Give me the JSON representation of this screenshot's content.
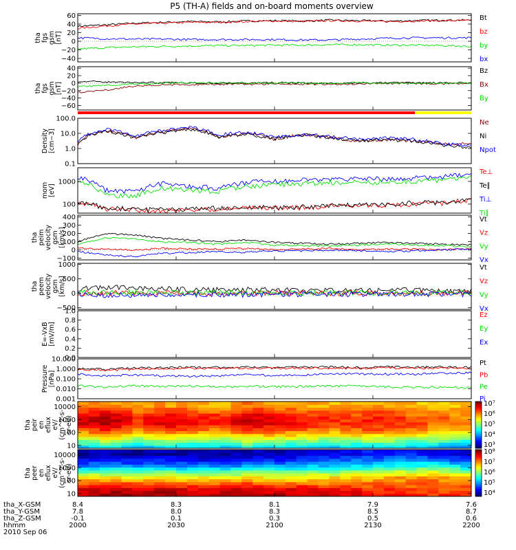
{
  "title": "P5 (TH-A) fields and on-board moments overview",
  "colors": {
    "black": "#000000",
    "red": "#ff0000",
    "green": "#00e000",
    "blue": "#0000ff",
    "darkred": "#8b0000",
    "olive": "#9a7a00",
    "lightgreen": "#60ff30",
    "yellow": "#ffff00",
    "brown": "#8b2500"
  },
  "chart_data": [
    {
      "id": "fgs_gsm",
      "type": "line",
      "ylabel_lines": [
        "tha",
        "fgs",
        "gsm",
        "[nT]"
      ],
      "ytick_labels": [
        "60",
        "40",
        "20",
        "0",
        "−20",
        "−40"
      ],
      "yticks": [
        60,
        40,
        20,
        0,
        -20,
        -40
      ],
      "ylim": [
        -48,
        64
      ],
      "log": false,
      "series": [
        {
          "name": "Bt",
          "color": "#000000",
          "values": [
            35,
            38,
            42,
            44,
            46,
            45,
            47,
            48,
            47,
            49,
            48,
            47,
            48,
            49,
            49
          ]
        },
        {
          "name": "bz",
          "color": "#ff0000",
          "values": [
            30,
            36,
            40,
            42,
            44,
            44,
            46,
            47,
            46,
            48,
            47,
            46,
            47,
            48,
            48
          ]
        },
        {
          "name": "by",
          "color": "#00e000",
          "values": [
            -18,
            -15,
            -13,
            -12,
            -11,
            -10,
            -10,
            -9,
            -9,
            -8,
            -8,
            -9,
            -9,
            -10,
            -12
          ]
        },
        {
          "name": "bx",
          "color": "#0000ff",
          "values": [
            8,
            6,
            5,
            5,
            4,
            4,
            4,
            4,
            3,
            3,
            5,
            7,
            8,
            8,
            8
          ]
        }
      ],
      "legend": [
        "Bt",
        "bz",
        "by",
        "bx"
      ]
    },
    {
      "id": "fgs_gsm_2",
      "type": "line",
      "ylabel_lines": [
        "tha",
        "fgs",
        "gsm",
        "[nT]"
      ],
      "ytick_labels": [
        "40",
        "20",
        "0",
        "−20",
        "−40",
        "−60"
      ],
      "yticks": [
        40,
        20,
        0,
        -20,
        -40,
        -60
      ],
      "ylim": [
        -72,
        44
      ],
      "log": false,
      "series": [
        {
          "name": "Bz",
          "color": "#000000",
          "values": [
            5,
            3,
            2,
            1,
            1,
            0,
            0,
            1,
            0,
            -1,
            0,
            1,
            1,
            0,
            1
          ]
        },
        {
          "name": "Bx",
          "color": "#8b0000",
          "values": [
            -25,
            -18,
            -8,
            -5,
            -4,
            -3,
            -3,
            -2,
            -3,
            -3,
            -2,
            -1,
            -1,
            -2,
            -1
          ]
        },
        {
          "name": "By",
          "color": "#00e000",
          "values": [
            -10,
            -6,
            -2,
            0,
            1,
            1,
            0,
            0,
            0,
            0,
            1,
            0,
            0,
            0,
            0
          ]
        }
      ],
      "legend": [
        "Bz",
        "Bx",
        "By"
      ]
    },
    {
      "id": "density",
      "type": "line",
      "ylabel_lines": [
        "Density",
        "[cm−3]"
      ],
      "ytick_labels": [
        "100.0",
        "10.0",
        "1.0",
        "0.1"
      ],
      "yticks": [
        100,
        10,
        1,
        0.1
      ],
      "ylim": [
        0.1,
        100
      ],
      "log": true,
      "series": [
        {
          "name": "Ne",
          "color": "#8b0000",
          "values": [
            2,
            15,
            5,
            12,
            20,
            6,
            10,
            4,
            8,
            5,
            3,
            4,
            3,
            2,
            2
          ]
        },
        {
          "name": "Ni",
          "color": "#000000",
          "values": [
            2,
            14,
            5,
            11,
            19,
            6,
            9,
            4,
            8,
            5,
            3,
            4,
            3,
            1.5,
            1.2
          ]
        },
        {
          "name": "Npot",
          "color": "#0000ff",
          "values": [
            2.5,
            18,
            6,
            15,
            25,
            8,
            12,
            5,
            9,
            6,
            4,
            5,
            4,
            2,
            1.5
          ]
        }
      ],
      "legend": [
        "Ne",
        "Ni",
        "Npot"
      ]
    },
    {
      "id": "mom_temp",
      "type": "line",
      "ylabel_lines": [
        "mom",
        "[eV]"
      ],
      "ytick_labels": [
        "1000",
        "100"
      ],
      "yticks": [
        1000,
        100
      ],
      "ylim": [
        40,
        4000
      ],
      "log": true,
      "series": [
        {
          "name": "Te⊥",
          "color": "#ff0000",
          "values": [
            120,
            60,
            55,
            50,
            55,
            60,
            70,
            65,
            70,
            80,
            85,
            90,
            100,
            110,
            150
          ]
        },
        {
          "name": "Te∥",
          "color": "#000000",
          "values": [
            130,
            65,
            60,
            55,
            60,
            65,
            75,
            70,
            75,
            85,
            90,
            100,
            110,
            120,
            160
          ]
        },
        {
          "name": "Ti⊥",
          "color": "#0000ff",
          "values": [
            1500,
            400,
            350,
            800,
            600,
            500,
            900,
            1000,
            1100,
            1200,
            1300,
            1300,
            1400,
            1600,
            2000
          ]
        },
        {
          "name": "Ti∥",
          "color": "#00e000",
          "values": [
            1000,
            250,
            220,
            500,
            400,
            350,
            600,
            700,
            800,
            900,
            900,
            950,
            1000,
            1100,
            1500
          ]
        }
      ],
      "legend": [
        "Te⊥",
        "Te∥",
        "Ti⊥",
        "Ti∥"
      ]
    },
    {
      "id": "peim_velocity",
      "type": "line",
      "ylabel_lines": [
        "tha",
        "peim",
        "velocity",
        "gsm",
        "[km/s]"
      ],
      "ytick_labels": [
        "400",
        "300",
        "200",
        "100",
        "0",
        "−100"
      ],
      "yticks": [
        400,
        300,
        200,
        100,
        0,
        -100
      ],
      "ylim": [
        -120,
        420
      ],
      "log": false,
      "series": [
        {
          "name": "Vt",
          "color": "#000000",
          "values": [
            100,
            200,
            180,
            140,
            120,
            100,
            120,
            90,
            80,
            70,
            80,
            90,
            80,
            70,
            60
          ]
        },
        {
          "name": "Vz",
          "color": "#ff0000",
          "values": [
            20,
            10,
            0,
            20,
            10,
            10,
            20,
            0,
            10,
            20,
            0,
            10,
            10,
            0,
            20
          ]
        },
        {
          "name": "Vy",
          "color": "#00e000",
          "values": [
            60,
            150,
            130,
            100,
            90,
            70,
            90,
            60,
            50,
            50,
            60,
            70,
            60,
            50,
            40
          ]
        },
        {
          "name": "Vx",
          "color": "#0000ff",
          "values": [
            -20,
            -60,
            -80,
            -40,
            -30,
            -20,
            -30,
            -10,
            -10,
            0,
            -10,
            -20,
            -10,
            0,
            10
          ]
        }
      ],
      "legend": [
        "Vt",
        "Vz",
        "Vy",
        "Vx"
      ]
    },
    {
      "id": "peem_velocity",
      "type": "line",
      "ylabel_lines": [
        "tha",
        "peem",
        "velocity",
        "gsm",
        "[km/s]"
      ],
      "ytick_labels": [
        "1000",
        "500",
        "0",
        "−500"
      ],
      "yticks": [
        1000,
        500,
        0,
        -500
      ],
      "ylim": [
        -560,
        1040
      ],
      "log": false,
      "series": [
        {
          "name": "Vt",
          "color": "#000000",
          "values": [
            150,
            200,
            180,
            150,
            120,
            110,
            120,
            100,
            90,
            90,
            100,
            110,
            100,
            90,
            100
          ]
        },
        {
          "name": "Vz",
          "color": "#ff0000",
          "values": [
            0,
            20,
            10,
            0,
            10,
            0,
            0,
            10,
            0,
            0,
            10,
            0,
            0,
            10,
            0
          ]
        },
        {
          "name": "Vy",
          "color": "#00e000",
          "values": [
            20,
            30,
            20,
            10,
            20,
            10,
            10,
            20,
            10,
            10,
            20,
            10,
            10,
            20,
            10
          ]
        },
        {
          "name": "Vx",
          "color": "#0000ff",
          "values": [
            -50,
            -80,
            -60,
            -50,
            -40,
            -40,
            -50,
            -40,
            -30,
            -30,
            -40,
            -30,
            -30,
            -40,
            -30
          ]
        }
      ],
      "legend": [
        "Vt",
        "Vz",
        "Vy",
        "Vx"
      ]
    },
    {
      "id": "e_vxb",
      "type": "line",
      "ylabel_lines": [
        "E=-VxB",
        "[mV/m]"
      ],
      "ytick_labels": [
        "1.0",
        "0.8",
        "0.6",
        "0.4",
        "0.2",
        "0.0"
      ],
      "yticks": [
        1,
        0.8,
        0.6,
        0.4,
        0.2,
        0
      ],
      "ylim": [
        0,
        1
      ],
      "log": false,
      "series": [],
      "legend": [
        "Ez",
        "Ey",
        "Ex"
      ]
    },
    {
      "id": "pressure",
      "type": "line",
      "ylabel_lines": [
        "Pressure",
        "[nPa]"
      ],
      "ytick_labels": [
        "10.000",
        "1.000",
        "0.100",
        "0.010",
        "0.001"
      ],
      "yticks": [
        10,
        1,
        0.1,
        0.01,
        0.001
      ],
      "ylim": [
        0.001,
        10
      ],
      "log": true,
      "series": [
        {
          "name": "Pt",
          "color": "#000000",
          "values": [
            1.1,
            0.9,
            1.2,
            1.3,
            1.4,
            1.4,
            1.5,
            1.4,
            1.5,
            1.5,
            1.4,
            1.5,
            1.5,
            1.5,
            1.4
          ]
        },
        {
          "name": "Pb",
          "color": "#ff0000",
          "values": [
            0.9,
            0.7,
            0.9,
            1.0,
            1.1,
            1.1,
            1.2,
            1.1,
            1.2,
            1.2,
            1.1,
            1.2,
            1.2,
            1.2,
            1.1
          ]
        },
        {
          "name": "Pe",
          "color": "#00e000",
          "values": [
            0.02,
            0.015,
            0.02,
            0.018,
            0.02,
            0.015,
            0.018,
            0.016,
            0.017,
            0.02,
            0.018,
            0.015,
            0.014,
            0.015,
            0.012
          ]
        },
        {
          "name": "Pi",
          "color": "#0000ff",
          "values": [
            0.3,
            0.2,
            0.25,
            0.2,
            0.18,
            0.2,
            0.25,
            0.22,
            0.25,
            0.3,
            0.3,
            0.3,
            0.3,
            0.35,
            0.4
          ]
        }
      ],
      "legend": [
        "Pt",
        "Pb",
        "Pe",
        "Pi"
      ]
    },
    {
      "id": "peir_eflux",
      "type": "heatmap",
      "ylabel_lines": [
        "tha",
        "peir",
        "en",
        "eflux",
        "eV/",
        "(cm^2-s-",
        "sr-eV)"
      ],
      "ytick_labels": [
        "10000",
        "1000",
        "100",
        "10"
      ],
      "yticks": [
        10000,
        1000,
        100,
        10
      ],
      "ylim": [
        6,
        25000
      ],
      "log": true,
      "colorbar_labels": [
        "10⁷",
        "10⁶",
        "10⁵",
        "10⁴",
        "10³"
      ],
      "rows_low_to_high_energy": [
        [
          4.4,
          4.5,
          4.3,
          4.5,
          4.4,
          4.3,
          4.6,
          4.5,
          4.4,
          4.3,
          4.4,
          4.5,
          4.3,
          4.2,
          4.1
        ],
        [
          5.0,
          5.2,
          4.9,
          5.1,
          5.0,
          4.9,
          5.2,
          5.1,
          5.0,
          4.9,
          5.0,
          5.1,
          4.9,
          4.8,
          4.7
        ],
        [
          5.6,
          5.8,
          5.5,
          5.7,
          5.6,
          5.5,
          5.8,
          5.7,
          5.6,
          5.5,
          5.6,
          5.7,
          5.5,
          5.4,
          5.3
        ],
        [
          6.2,
          6.5,
          6.0,
          6.3,
          6.2,
          6.0,
          6.4,
          6.3,
          6.2,
          6.0,
          6.1,
          6.2,
          6.0,
          5.9,
          5.8
        ],
        [
          6.6,
          6.8,
          6.3,
          6.6,
          6.5,
          6.3,
          6.7,
          6.6,
          6.4,
          6.3,
          6.3,
          6.4,
          6.2,
          6.1,
          6.0
        ],
        [
          6.6,
          6.8,
          6.4,
          6.6,
          6.5,
          6.4,
          6.7,
          6.6,
          6.4,
          6.3,
          6.3,
          6.4,
          6.2,
          6.1,
          6.0
        ],
        [
          6.3,
          6.5,
          6.1,
          6.3,
          6.2,
          6.1,
          6.4,
          6.3,
          6.2,
          6.1,
          6.1,
          6.2,
          6.0,
          5.9,
          5.9
        ],
        [
          5.9,
          6.0,
          5.8,
          5.9,
          5.9,
          5.8,
          6.0,
          5.9,
          5.9,
          5.8,
          5.8,
          5.9,
          5.8,
          5.7,
          5.7
        ]
      ]
    },
    {
      "id": "peer_eflux",
      "type": "heatmap",
      "ylabel_lines": [
        "tha",
        "peer",
        "en",
        "eflux",
        "eV/",
        "(cm^2-s-",
        "sr-eV)"
      ],
      "ytick_labels": [
        "10000",
        "1000",
        "100",
        "10"
      ],
      "yticks": [
        10000,
        1000,
        100,
        10
      ],
      "ylim": [
        6,
        25000
      ],
      "log": true,
      "colorbar_labels": [
        "10⁸",
        "10⁷",
        "10⁶",
        "10⁵",
        "10⁴"
      ],
      "rows_low_to_high_energy": [
        [
          7.8,
          7.9,
          7.8,
          7.9,
          7.8,
          7.8,
          7.9,
          7.8,
          7.8,
          7.7,
          7.6,
          7.5,
          7.4,
          7.3,
          7.4
        ],
        [
          7.6,
          7.7,
          7.6,
          7.7,
          7.6,
          7.6,
          7.7,
          7.6,
          7.6,
          7.5,
          7.4,
          7.3,
          7.2,
          7.1,
          7.2
        ],
        [
          7.1,
          7.3,
          7.1,
          7.2,
          7.1,
          7.1,
          7.2,
          7.1,
          7.1,
          7.0,
          7.0,
          7.1,
          7.1,
          7.1,
          7.0
        ],
        [
          6.5,
          6.6,
          6.5,
          6.6,
          6.5,
          6.5,
          6.6,
          6.5,
          6.5,
          6.6,
          6.7,
          6.8,
          6.9,
          6.9,
          6.7
        ],
        [
          5.8,
          5.9,
          5.8,
          5.9,
          5.8,
          5.8,
          5.9,
          5.9,
          5.9,
          6.0,
          6.1,
          6.2,
          6.3,
          6.3,
          6.0
        ],
        [
          5.0,
          5.1,
          5.0,
          5.1,
          5.0,
          5.0,
          5.1,
          5.1,
          5.2,
          5.3,
          5.4,
          5.5,
          5.6,
          5.6,
          5.3
        ],
        [
          4.5,
          4.6,
          4.5,
          4.6,
          4.5,
          4.5,
          4.6,
          4.6,
          4.7,
          4.8,
          4.9,
          5.0,
          5.1,
          5.0,
          4.8
        ],
        [
          4.1,
          4.2,
          4.1,
          4.2,
          4.1,
          4.1,
          4.2,
          4.2,
          4.3,
          4.4,
          4.5,
          4.6,
          4.6,
          4.5,
          4.3
        ]
      ]
    }
  ],
  "time_axis": {
    "ticks": [
      "2000",
      "2030",
      "2100",
      "2130",
      "2200"
    ],
    "rows": [
      {
        "label": "tha_X-GSM",
        "values": [
          "8.4",
          "8.3",
          "8.1",
          "7.9",
          "7.6"
        ]
      },
      {
        "label": "tha_Y-GSM",
        "values": [
          "7.8",
          "8.0",
          "8.3",
          "8.5",
          "8.7"
        ]
      },
      {
        "label": "tha_Z-GSM",
        "values": [
          "-0.1",
          "0.1",
          "0.3",
          "0.5",
          "0.6"
        ]
      },
      {
        "label": "hhmm",
        "values": [
          "2000",
          "2030",
          "2100",
          "2130",
          "2200"
        ]
      }
    ],
    "date": "2010 Sep 06"
  }
}
